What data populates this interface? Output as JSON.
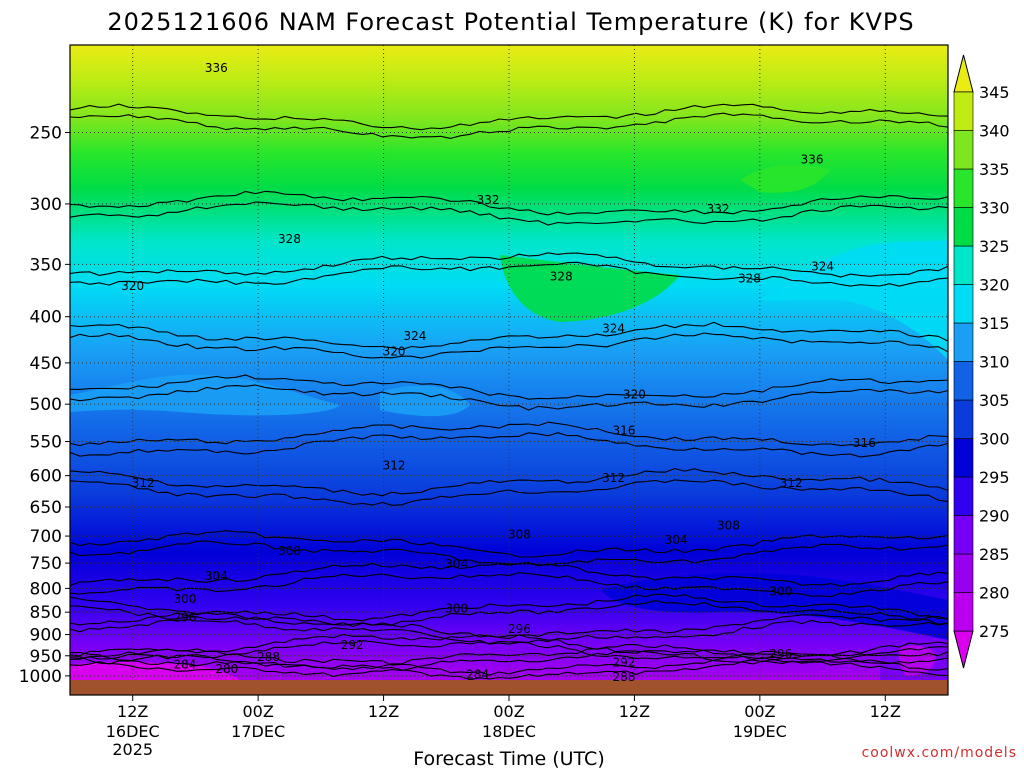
{
  "chart_data": {
    "type": "heatmap",
    "title": "2025121606 NAM Forecast Potential Temperature (K) for KVPS",
    "xlabel": "Forecast Time (UTC)",
    "ylabel": "",
    "y_scale": "log",
    "y_reversed": true,
    "ylim": [
      1050,
      200
    ],
    "y_ticks": [
      250,
      300,
      350,
      400,
      450,
      500,
      550,
      600,
      650,
      700,
      750,
      800,
      850,
      900,
      950,
      1000
    ],
    "xlim": [
      "2025-12-16T06:00Z",
      "2025-12-19T18:00Z"
    ],
    "x_ticks": [
      {
        "label": "12Z",
        "time": "2025-12-16T12:00Z"
      },
      {
        "label": "00Z",
        "time": "2025-12-17T00:00Z"
      },
      {
        "label": "12Z",
        "time": "2025-12-17T12:00Z"
      },
      {
        "label": "00Z",
        "time": "2025-12-18T00:00Z"
      },
      {
        "label": "12Z",
        "time": "2025-12-18T12:00Z"
      },
      {
        "label": "00Z",
        "time": "2025-12-19T00:00Z"
      },
      {
        "label": "12Z",
        "time": "2025-12-19T12:00Z"
      }
    ],
    "x_date_labels": [
      {
        "lines": [
          "16DEC",
          "2025"
        ],
        "time": "2025-12-16T12:00Z"
      },
      {
        "lines": [
          "17DEC"
        ],
        "time": "2025-12-17T00:00Z"
      },
      {
        "lines": [
          "18DEC"
        ],
        "time": "2025-12-18T00:00Z"
      },
      {
        "lines": [
          "19DEC"
        ],
        "time": "2025-12-19T00:00Z"
      }
    ],
    "grid": true,
    "colorbar": {
      "levels": [
        275,
        280,
        285,
        290,
        295,
        300,
        305,
        310,
        315,
        320,
        325,
        330,
        335,
        340,
        345
      ],
      "colors": [
        "#dd00ee",
        "#bb00f0",
        "#9a00f0",
        "#7500f5",
        "#3000f0",
        "#0000d8",
        "#0a3cdc",
        "#1262e6",
        "#1a9ff5",
        "#00dcf5",
        "#00e6c8",
        "#00dc46",
        "#2ae62a",
        "#7ee61e",
        "#c0ec14",
        "#eaec14"
      ],
      "extend": "both"
    },
    "contours": [
      {
        "theta": 284,
        "pressure": 965
      },
      {
        "theta": 288,
        "pressure": 955
      },
      {
        "theta": 292,
        "pressure": 925
      },
      {
        "theta": 296,
        "pressure": 880
      },
      {
        "theta": 300,
        "pressure": 840
      },
      {
        "theta": 304,
        "pressure": 770
      },
      {
        "theta": 308,
        "pressure": 715
      },
      {
        "theta": 312,
        "pressure": 610
      },
      {
        "theta": 316,
        "pressure": 540
      },
      {
        "theta": 320,
        "pressure": 480
      },
      {
        "theta": 324,
        "pressure": 420
      },
      {
        "theta": 328,
        "pressure": 350
      },
      {
        "theta": 332,
        "pressure": 300
      },
      {
        "theta": 336,
        "pressure": 240
      }
    ],
    "contour_labels": [
      {
        "text": "336",
        "time": "2025-12-16T20:00Z",
        "pressure": 212
      },
      {
        "text": "336",
        "time": "2025-12-19T05:00Z",
        "pressure": 268
      },
      {
        "text": "332",
        "time": "2025-12-17T22:00Z",
        "pressure": 297
      },
      {
        "text": "332",
        "time": "2025-12-18T20:00Z",
        "pressure": 304
      },
      {
        "text": "328",
        "time": "2025-12-17T03:00Z",
        "pressure": 328
      },
      {
        "text": "328",
        "time": "2025-12-18T05:00Z",
        "pressure": 361
      },
      {
        "text": "328",
        "time": "2025-12-18T23:00Z",
        "pressure": 363
      },
      {
        "text": "324",
        "time": "2025-12-17T15:00Z",
        "pressure": 420
      },
      {
        "text": "324",
        "time": "2025-12-18T10:00Z",
        "pressure": 412
      },
      {
        "text": "324",
        "time": "2025-12-19T06:00Z",
        "pressure": 352
      },
      {
        "text": "320",
        "time": "2025-12-16T12:00Z",
        "pressure": 370
      },
      {
        "text": "320",
        "time": "2025-12-17T13:00Z",
        "pressure": 437
      },
      {
        "text": "320",
        "time": "2025-12-18T12:00Z",
        "pressure": 488
      },
      {
        "text": "316",
        "time": "2025-12-18T11:00Z",
        "pressure": 535
      },
      {
        "text": "316",
        "time": "2025-12-19T10:00Z",
        "pressure": 552
      },
      {
        "text": "312",
        "time": "2025-12-16T13:00Z",
        "pressure": 611
      },
      {
        "text": "312",
        "time": "2025-12-17T13:00Z",
        "pressure": 585
      },
      {
        "text": "312",
        "time": "2025-12-18T10:00Z",
        "pressure": 604
      },
      {
        "text": "312",
        "time": "2025-12-19T03:00Z",
        "pressure": 611
      },
      {
        "text": "308",
        "time": "2025-12-17T03:00Z",
        "pressure": 727
      },
      {
        "text": "308",
        "time": "2025-12-18T01:00Z",
        "pressure": 697
      },
      {
        "text": "308",
        "time": "2025-12-18T21:00Z",
        "pressure": 681
      },
      {
        "text": "304",
        "time": "2025-12-16T20:00Z",
        "pressure": 775
      },
      {
        "text": "304",
        "time": "2025-12-17T19:00Z",
        "pressure": 752
      },
      {
        "text": "304",
        "time": "2025-12-18T16:00Z",
        "pressure": 707
      },
      {
        "text": "300",
        "time": "2025-12-16T17:00Z",
        "pressure": 822
      },
      {
        "text": "300",
        "time": "2025-12-17T19:00Z",
        "pressure": 842
      },
      {
        "text": "300",
        "time": "2025-12-19T02:00Z",
        "pressure": 806
      },
      {
        "text": "296",
        "time": "2025-12-16T17:00Z",
        "pressure": 862
      },
      {
        "text": "296",
        "time": "2025-12-18T01:00Z",
        "pressure": 887
      },
      {
        "text": "296",
        "time": "2025-12-19T02:00Z",
        "pressure": 946
      },
      {
        "text": "292",
        "time": "2025-12-17T09:00Z",
        "pressure": 924
      },
      {
        "text": "292",
        "time": "2025-12-18T11:00Z",
        "pressure": 966
      },
      {
        "text": "288",
        "time": "2025-12-17T01:00Z",
        "pressure": 953
      },
      {
        "text": "288",
        "time": "2025-12-18T11:00Z",
        "pressure": 1003
      },
      {
        "text": "284",
        "time": "2025-12-16T17:00Z",
        "pressure": 972
      },
      {
        "text": "284",
        "time": "2025-12-17T21:00Z",
        "pressure": 997
      },
      {
        "text": "280",
        "time": "2025-12-16T21:00Z",
        "pressure": 983
      }
    ]
  },
  "credit": "coolwx.com/models"
}
